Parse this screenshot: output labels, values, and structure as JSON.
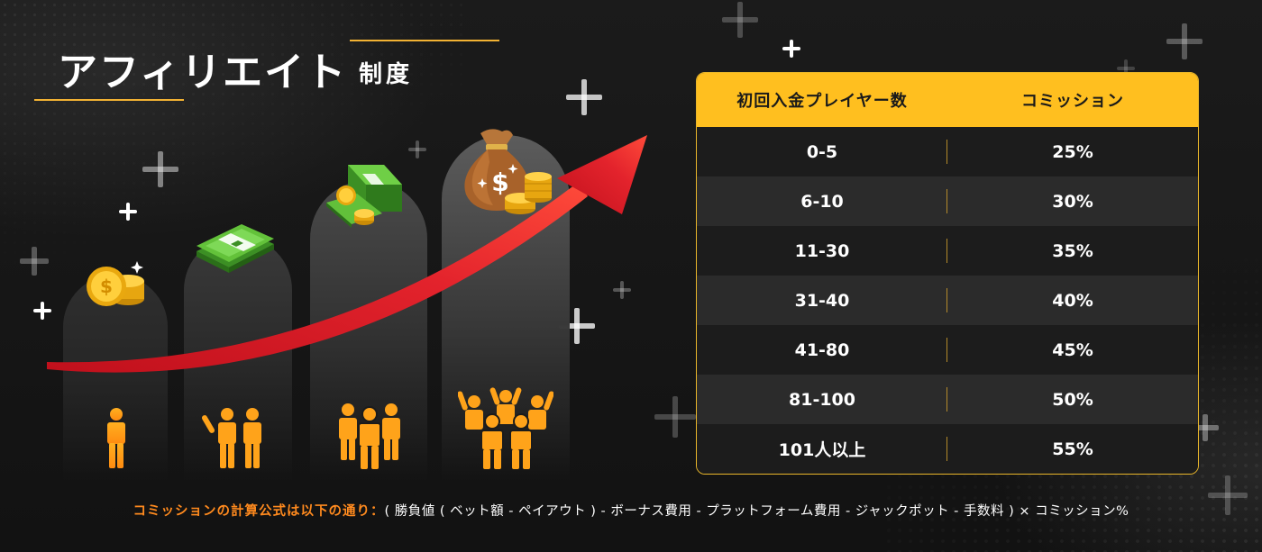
{
  "title": {
    "main": "アフィリエイト",
    "sub": "制度"
  },
  "table": {
    "headers": [
      "初回入金プレイヤー数",
      "コミッション"
    ],
    "rows": [
      {
        "players": "0-5",
        "commission": "25%"
      },
      {
        "players": "6-10",
        "commission": "30%"
      },
      {
        "players": "11-30",
        "commission": "35%"
      },
      {
        "players": "31-40",
        "commission": "40%"
      },
      {
        "players": "41-80",
        "commission": "45%"
      },
      {
        "players": "81-100",
        "commission": "50%"
      },
      {
        "players": "101人以上",
        "commission": "55%"
      }
    ]
  },
  "footer": {
    "lead": "コミッションの計算公式は以下の通り：",
    "formula": "( 勝負値 ( ベット額 - ペイアウト ) - ボーナス費用 - プラットフォーム費用 - ジャックポット - 手数料 ) × コミッション%"
  },
  "colors": {
    "accent": "#ffbf1f",
    "footer_lead": "#ff8a1e",
    "arrow": "#e3232c",
    "background": "#151515"
  },
  "icons": [
    "coin-stack-icon",
    "cash-bundle-icon",
    "cash-stacks-icon",
    "money-bag-icon",
    "person-icon",
    "arrow-icon",
    "plus-icon"
  ]
}
